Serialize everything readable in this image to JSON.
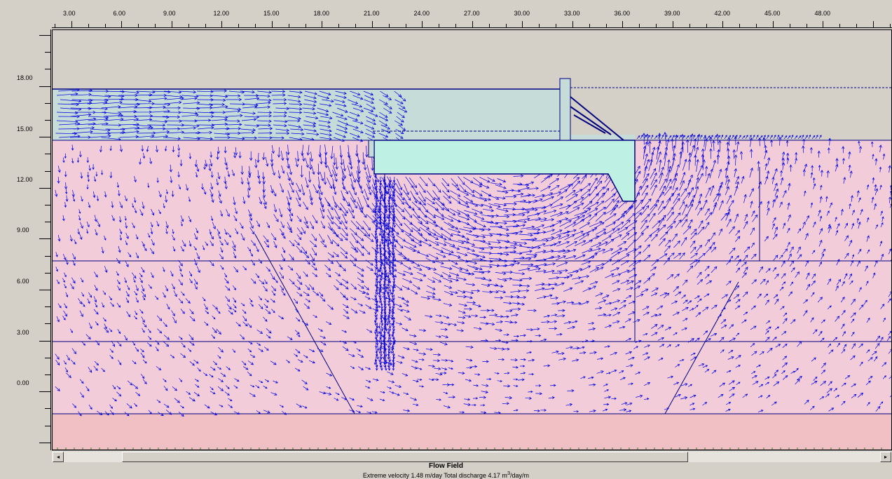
{
  "window": {
    "footer_title": "Flow Field",
    "footer_velocity": "Extreme velocity 1.48 m/day",
    "footer_discharge_prefix": "Total discharge 4.17 m",
    "footer_discharge_exp": "3",
    "footer_discharge_suffix": "/day/m"
  },
  "axes": {
    "x_ticks": [
      "3.00",
      "6.00",
      "9.00",
      "12.00",
      "15.00",
      "18.00",
      "21.00",
      "24.00",
      "27.00",
      "30.00",
      "33.00",
      "36.00",
      "39.00",
      "42.00",
      "45.00",
      "48.00"
    ],
    "y_ticks": [
      "18.00",
      "15.00",
      "12.00",
      "9.00",
      "6.00",
      "3.00",
      "0.00"
    ]
  },
  "colors": {
    "background": "#d4d0c8",
    "soil_upper": "#f2ccd8",
    "soil_lower": "#f0c0c4",
    "water": "#c6dcd8",
    "structure": "#bff0e4",
    "vector": "#0000e0",
    "line": "#000080"
  },
  "icons": {
    "scroll_left": "◂",
    "scroll_right": "▸"
  }
}
